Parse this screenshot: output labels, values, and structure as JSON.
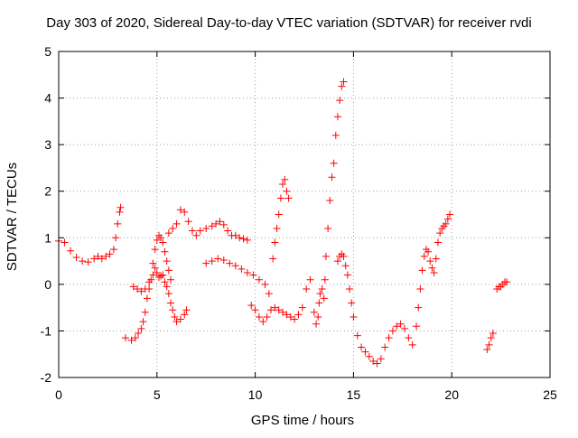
{
  "chart_data": {
    "type": "scatter",
    "title": "Day 303 of 2020, Sidereal Day-to-day VTEC variation (SDTVAR) for receiver rvdi",
    "xlabel": "GPS time / hours",
    "ylabel": "SDTVAR / TECUs",
    "xlim": [
      0,
      25
    ],
    "ylim": [
      -2,
      5
    ],
    "xticks": [
      "0",
      "5",
      "10",
      "15",
      "20",
      "25"
    ],
    "yticks": [
      "-2",
      "-1",
      "0",
      "1",
      "2",
      "3",
      "4",
      "5"
    ],
    "grid": true,
    "marker": "plus",
    "color": "#ff0000",
    "series": [
      {
        "values": [
          [
            0.0,
            0.93
          ],
          [
            0.3,
            0.9
          ],
          [
            0.6,
            0.72
          ],
          [
            0.9,
            0.58
          ],
          [
            1.2,
            0.5
          ],
          [
            1.5,
            0.48
          ],
          [
            1.8,
            0.55
          ],
          [
            2.0,
            0.6
          ],
          [
            2.2,
            0.55
          ],
          [
            2.4,
            0.6
          ],
          [
            2.6,
            0.65
          ],
          [
            2.8,
            0.75
          ],
          [
            2.9,
            1.0
          ],
          [
            3.0,
            1.3
          ],
          [
            3.1,
            1.55
          ],
          [
            3.15,
            1.65
          ],
          [
            3.4,
            -1.15
          ],
          [
            3.7,
            -1.2
          ],
          [
            3.9,
            -1.15
          ],
          [
            4.05,
            -1.05
          ],
          [
            4.2,
            -0.95
          ],
          [
            4.3,
            -0.8
          ],
          [
            4.4,
            -0.6
          ],
          [
            4.5,
            -0.3
          ],
          [
            4.6,
            -0.1
          ],
          [
            4.7,
            0.1
          ],
          [
            4.8,
            0.2
          ],
          [
            4.9,
            0.35
          ],
          [
            5.0,
            0.25
          ],
          [
            5.1,
            0.15
          ],
          [
            5.2,
            0.18
          ],
          [
            5.3,
            0.2
          ],
          [
            5.4,
            0.05
          ],
          [
            5.5,
            -0.05
          ],
          [
            5.6,
            -0.2
          ],
          [
            5.7,
            -0.4
          ],
          [
            5.8,
            -0.55
          ],
          [
            5.9,
            -0.7
          ],
          [
            6.0,
            -0.8
          ],
          [
            6.2,
            -0.75
          ],
          [
            6.4,
            -0.65
          ],
          [
            6.5,
            -0.55
          ],
          [
            3.8,
            -0.05
          ],
          [
            4.0,
            -0.1
          ],
          [
            4.2,
            -0.15
          ],
          [
            4.4,
            -0.1
          ],
          [
            4.6,
            0.05
          ],
          [
            4.8,
            0.45
          ],
          [
            4.9,
            0.75
          ],
          [
            5.0,
            0.95
          ],
          [
            5.1,
            1.05
          ],
          [
            5.2,
            1.0
          ],
          [
            5.3,
            0.9
          ],
          [
            5.4,
            0.7
          ],
          [
            5.5,
            0.5
          ],
          [
            5.6,
            0.3
          ],
          [
            5.7,
            0.1
          ],
          [
            5.6,
            1.1
          ],
          [
            5.8,
            1.2
          ],
          [
            6.0,
            1.3
          ],
          [
            6.2,
            1.6
          ],
          [
            6.4,
            1.55
          ],
          [
            6.6,
            1.35
          ],
          [
            6.8,
            1.15
          ],
          [
            7.0,
            1.05
          ],
          [
            7.2,
            1.15
          ],
          [
            7.5,
            1.2
          ],
          [
            7.8,
            1.25
          ],
          [
            8.0,
            1.3
          ],
          [
            8.2,
            1.35
          ],
          [
            8.4,
            1.28
          ],
          [
            8.6,
            1.15
          ],
          [
            8.8,
            1.05
          ],
          [
            9.0,
            1.05
          ],
          [
            9.2,
            1.0
          ],
          [
            9.4,
            0.98
          ],
          [
            9.6,
            0.95
          ],
          [
            7.5,
            0.45
          ],
          [
            7.8,
            0.5
          ],
          [
            8.1,
            0.55
          ],
          [
            8.4,
            0.52
          ],
          [
            8.7,
            0.45
          ],
          [
            9.0,
            0.4
          ],
          [
            9.3,
            0.33
          ],
          [
            9.6,
            0.25
          ],
          [
            9.9,
            0.2
          ],
          [
            10.2,
            0.1
          ],
          [
            10.5,
            0.0
          ],
          [
            10.7,
            -0.2
          ],
          [
            9.8,
            -0.45
          ],
          [
            10.0,
            -0.55
          ],
          [
            10.2,
            -0.7
          ],
          [
            10.4,
            -0.8
          ],
          [
            10.6,
            -0.7
          ],
          [
            10.8,
            -0.55
          ],
          [
            11.0,
            -0.5
          ],
          [
            11.2,
            -0.55
          ],
          [
            11.4,
            -0.6
          ],
          [
            11.6,
            -0.65
          ],
          [
            11.8,
            -0.7
          ],
          [
            12.0,
            -0.75
          ],
          [
            12.2,
            -0.65
          ],
          [
            12.4,
            -0.5
          ],
          [
            12.6,
            -0.1
          ],
          [
            12.8,
            0.1
          ],
          [
            10.9,
            0.55
          ],
          [
            11.0,
            0.9
          ],
          [
            11.1,
            1.2
          ],
          [
            11.2,
            1.5
          ],
          [
            11.3,
            1.85
          ],
          [
            11.4,
            2.15
          ],
          [
            11.5,
            2.25
          ],
          [
            11.6,
            2.0
          ],
          [
            11.7,
            1.85
          ],
          [
            13.0,
            -0.6
          ],
          [
            13.1,
            -0.85
          ],
          [
            13.2,
            -0.7
          ],
          [
            13.25,
            -0.4
          ],
          [
            13.3,
            -0.2
          ],
          [
            13.4,
            -0.1
          ],
          [
            13.5,
            -0.3
          ],
          [
            13.55,
            0.1
          ],
          [
            13.6,
            0.6
          ],
          [
            13.7,
            1.2
          ],
          [
            13.8,
            1.8
          ],
          [
            13.9,
            2.3
          ],
          [
            14.0,
            2.6
          ],
          [
            14.1,
            3.2
          ],
          [
            14.2,
            3.6
          ],
          [
            14.3,
            3.95
          ],
          [
            14.4,
            4.25
          ],
          [
            14.5,
            4.35
          ],
          [
            14.2,
            0.5
          ],
          [
            14.3,
            0.6
          ],
          [
            14.4,
            0.65
          ],
          [
            14.5,
            0.6
          ],
          [
            14.6,
            0.4
          ],
          [
            14.7,
            0.2
          ],
          [
            14.8,
            -0.1
          ],
          [
            14.9,
            -0.4
          ],
          [
            15.0,
            -0.7
          ],
          [
            15.2,
            -1.1
          ],
          [
            15.4,
            -1.35
          ],
          [
            15.6,
            -1.45
          ],
          [
            15.8,
            -1.55
          ],
          [
            16.0,
            -1.65
          ],
          [
            16.2,
            -1.7
          ],
          [
            16.4,
            -1.6
          ],
          [
            16.6,
            -1.35
          ],
          [
            16.8,
            -1.15
          ],
          [
            17.0,
            -1.0
          ],
          [
            17.2,
            -0.9
          ],
          [
            17.4,
            -0.85
          ],
          [
            17.6,
            -0.95
          ],
          [
            17.8,
            -1.15
          ],
          [
            18.0,
            -1.3
          ],
          [
            18.2,
            -0.9
          ],
          [
            18.3,
            -0.5
          ],
          [
            18.4,
            -0.1
          ],
          [
            18.5,
            0.3
          ],
          [
            18.6,
            0.6
          ],
          [
            18.7,
            0.75
          ],
          [
            18.8,
            0.7
          ],
          [
            18.9,
            0.5
          ],
          [
            19.0,
            0.35
          ],
          [
            19.1,
            0.25
          ],
          [
            19.2,
            0.55
          ],
          [
            19.3,
            0.9
          ],
          [
            19.4,
            1.1
          ],
          [
            19.5,
            1.2
          ],
          [
            19.6,
            1.25
          ],
          [
            19.7,
            1.3
          ],
          [
            19.8,
            1.4
          ],
          [
            19.9,
            1.5
          ],
          [
            21.8,
            -1.4
          ],
          [
            21.9,
            -1.3
          ],
          [
            22.0,
            -1.15
          ],
          [
            22.1,
            -1.05
          ],
          [
            22.3,
            -0.1
          ],
          [
            22.4,
            -0.05
          ],
          [
            22.5,
            -0.05
          ],
          [
            22.6,
            0.0
          ],
          [
            22.7,
            0.05
          ],
          [
            22.8,
            0.05
          ]
        ]
      }
    ]
  }
}
